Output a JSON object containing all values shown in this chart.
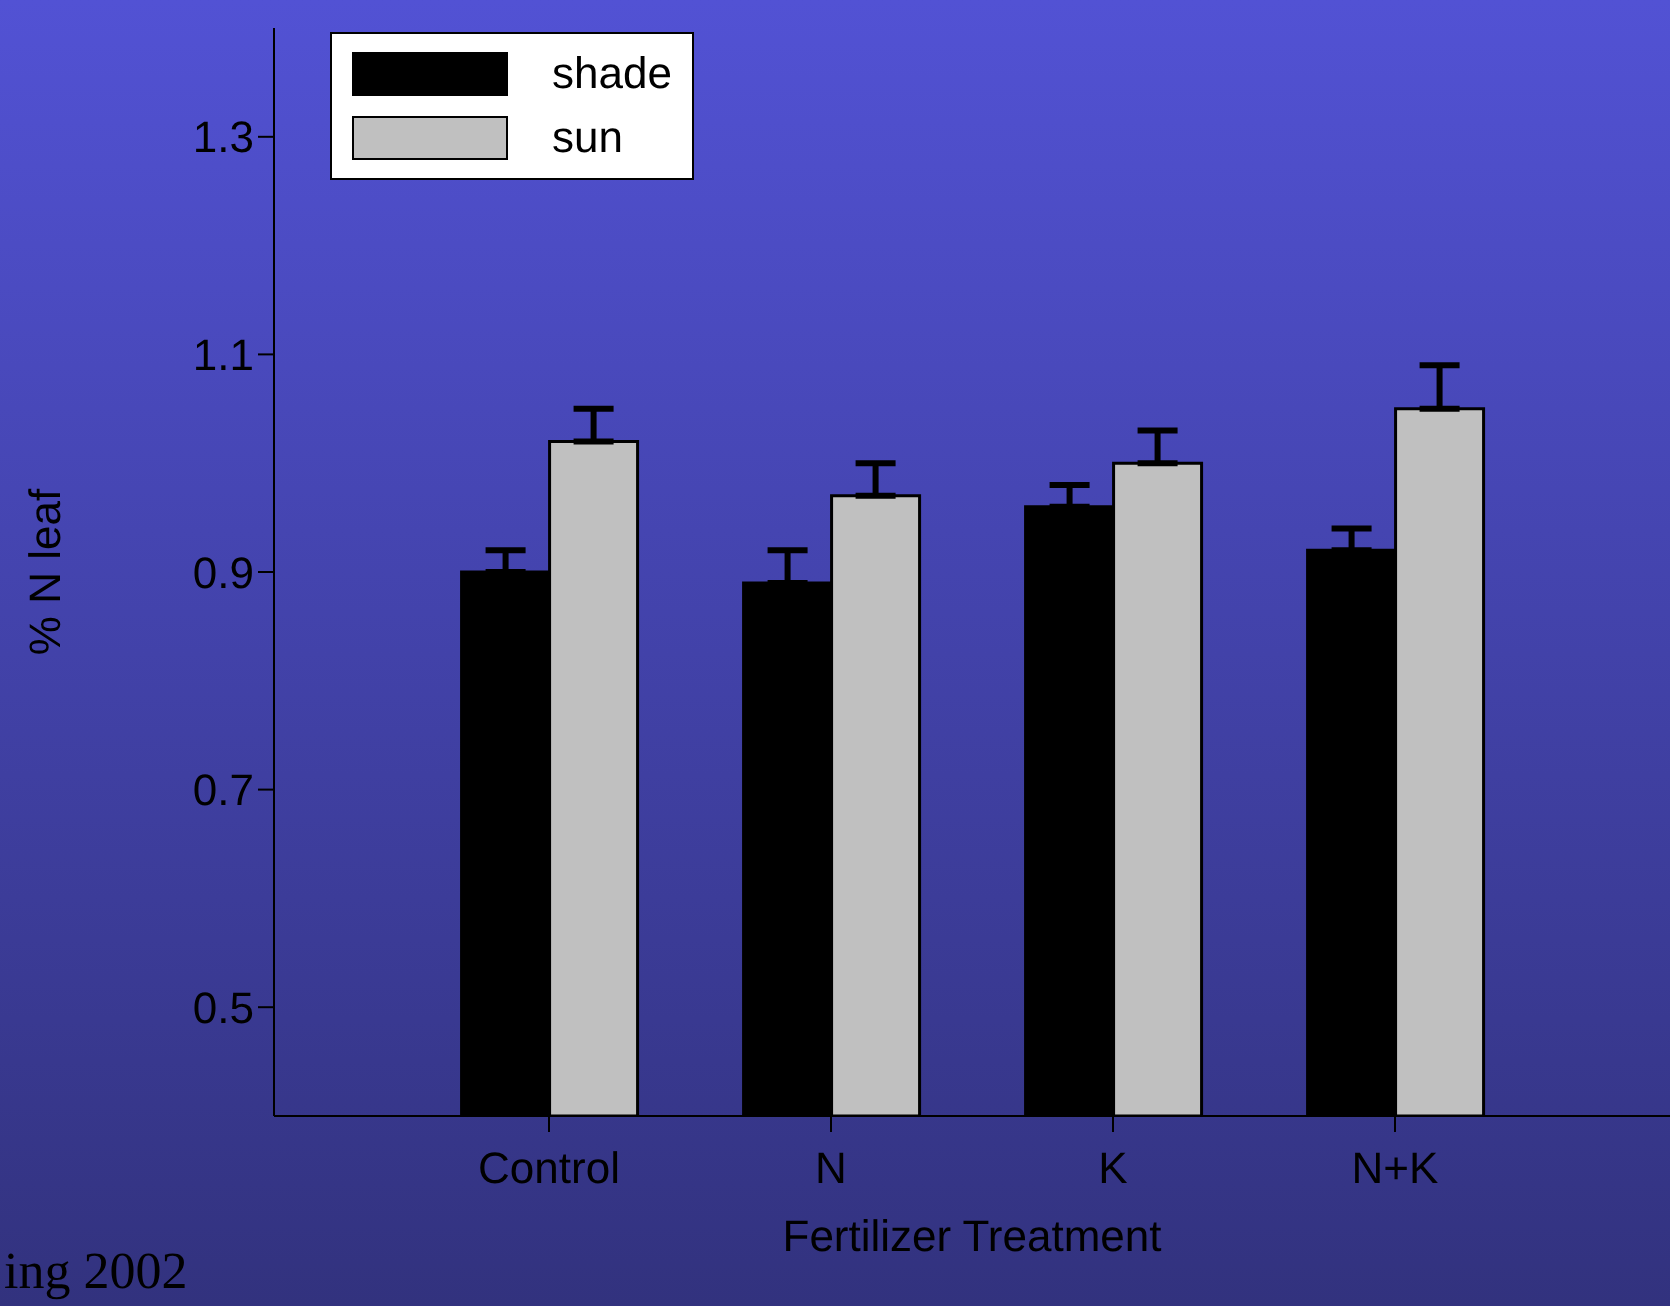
{
  "chart_data": {
    "type": "bar",
    "xlabel": "Fertilizer Treatment",
    "ylabel": "% N leaf",
    "categories": [
      "Control",
      "N",
      "K",
      "N+K"
    ],
    "series": [
      {
        "name": "shade",
        "color": "#000000",
        "values": [
          0.9,
          0.89,
          0.96,
          0.92
        ],
        "errors": [
          0.02,
          0.03,
          0.02,
          0.02
        ]
      },
      {
        "name": "sun",
        "color": "#c0c0c0",
        "values": [
          1.02,
          0.97,
          1.0,
          1.05
        ],
        "errors": [
          0.03,
          0.03,
          0.03,
          0.04
        ]
      }
    ],
    "ylim": [
      0.4,
      1.4
    ],
    "yticks": [
      0.5,
      0.7,
      0.9,
      1.1,
      1.3
    ],
    "grid": false,
    "legend": "top left",
    "annotations": [
      "ing 2002"
    ]
  }
}
